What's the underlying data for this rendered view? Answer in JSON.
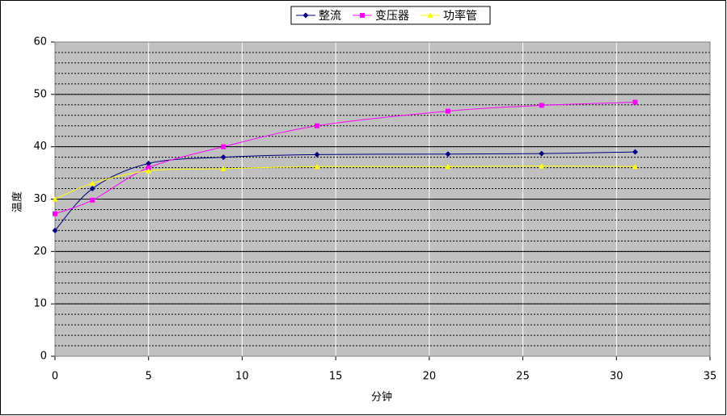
{
  "chart_data": {
    "type": "scatter-smooth",
    "x_label": "分钟",
    "y_label": "温度",
    "x": [
      0,
      2,
      5,
      9,
      14,
      21,
      26,
      31
    ],
    "series": [
      {
        "name": "整流",
        "color": "#000080",
        "marker": "diamond",
        "values": [
          24,
          32,
          36.8,
          38,
          38.5,
          38.6,
          38.7,
          39
        ]
      },
      {
        "name": "变压器",
        "color": "#ff00ff",
        "marker": "square",
        "values": [
          27.2,
          29.8,
          36,
          40,
          44,
          46.8,
          47.9,
          48.5
        ]
      },
      {
        "name": "功率管",
        "color": "#ffff00",
        "marker": "triangle",
        "values": [
          30,
          33,
          35.4,
          35.8,
          36.2,
          36.2,
          36.3,
          36.2
        ]
      }
    ],
    "xlim": [
      0,
      35
    ],
    "xticks": [
      0,
      5,
      10,
      15,
      20,
      25,
      30,
      35
    ],
    "ylim": [
      0,
      60
    ],
    "yticks": [
      0,
      10,
      20,
      30,
      40,
      50,
      60
    ],
    "minor_grid_step": 2,
    "grid": true,
    "legend": "top",
    "plot_background": "#c0c0c0"
  }
}
